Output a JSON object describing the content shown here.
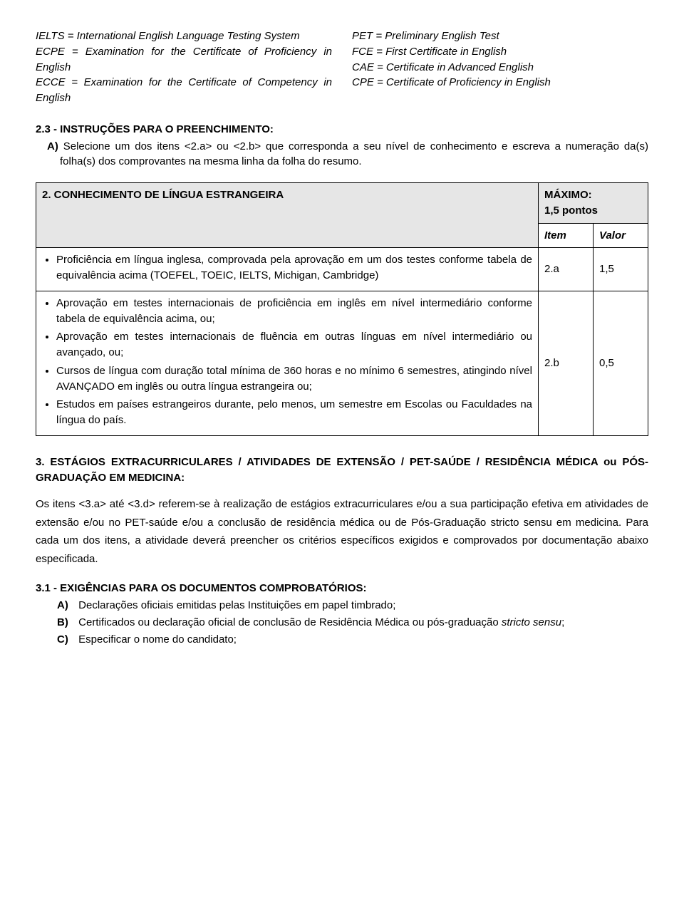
{
  "defs": {
    "left": [
      "IELTS = International English Language Testing System",
      "ECPE = Examination for the Certificate of Proficiency in English",
      "ECCE = Examination for the Certificate of Competency in English"
    ],
    "right": [
      "PET = Preliminary English Test",
      "FCE = First Certificate in English",
      "CAE = Certificate in Advanced English",
      "CPE = Certificate of Proficiency in English"
    ]
  },
  "s23": {
    "head": "2.3 - INSTRUÇÕES PARA O PREENCHIMENTO:",
    "a_prefix": "A)",
    "a_body": "Selecione um dos itens <2.a> ou <2.b> que corresponda a seu nível de conhecimento e escreva a numeração da(s) folha(s) dos comprovantes na mesma linha da folha do resumo."
  },
  "tbl2": {
    "title": "2. CONHECIMENTO DE LÍNGUA ESTRANGEIRA",
    "max_label": "MÁXIMO:",
    "max_value": "1,5 pontos",
    "h_item": "Item",
    "h_valor": "Valor",
    "row1": {
      "text": "Proficiência em língua inglesa, comprovada pela aprovação em um dos testes conforme tabela de equivalência acima (TOEFEL, TOEIC, IELTS, Michigan, Cambridge)",
      "item": "2.a",
      "valor": "1,5"
    },
    "row2": {
      "b1": "Aprovação em testes internacionais de proficiência em inglês em nível intermediário conforme tabela de equivalência acima, ou;",
      "b2": "Aprovação em testes internacionais de fluência em outras línguas em nível intermediário ou avançado, ou;",
      "b3": "Cursos de língua com duração total mínima de 360 horas e no mínimo 6 semestres, atingindo nível AVANÇADO em inglês ou outra língua estrangeira ou;",
      "b4": "Estudos em países estrangeiros durante, pelo menos, um semestre em Escolas ou Faculdades na língua do país.",
      "item": "2.b",
      "valor": "0,5"
    }
  },
  "sec3": {
    "title": "3. ESTÁGIOS EXTRACURRICULARES / ATIVIDADES DE EXTENSÃO / PET-SAÚDE / RESIDÊNCIA MÉDICA ou PÓS-GRADUAÇÃO EM MEDICINA:",
    "para": "Os itens <3.a> até <3.d> referem-se à realização de estágios extracurriculares e/ou a sua participação efetiva em atividades de extensão e/ou no PET-saúde e/ou a conclusão de residência médica ou de Pós-Graduação stricto sensu em medicina. Para cada um dos itens, a atividade deverá preencher os critérios específicos exigidos e comprovados por documentação abaixo especificada."
  },
  "s31": {
    "head": "3.1 - EXIGÊNCIAS PARA OS DOCUMENTOS COMPROBATÓRIOS:",
    "a_lbl": "A)",
    "a_txt": "Declarações oficiais emitidas pelas Instituições em papel timbrado;",
    "b_lbl": "B)",
    "b_txt_pre": "Certificados ou declaração oficial de conclusão de Residência Médica ou pós-graduação ",
    "b_txt_it": "stricto sensu",
    "b_txt_post": ";",
    "c_lbl": "C)",
    "c_txt": "Especificar o nome do candidato;"
  }
}
